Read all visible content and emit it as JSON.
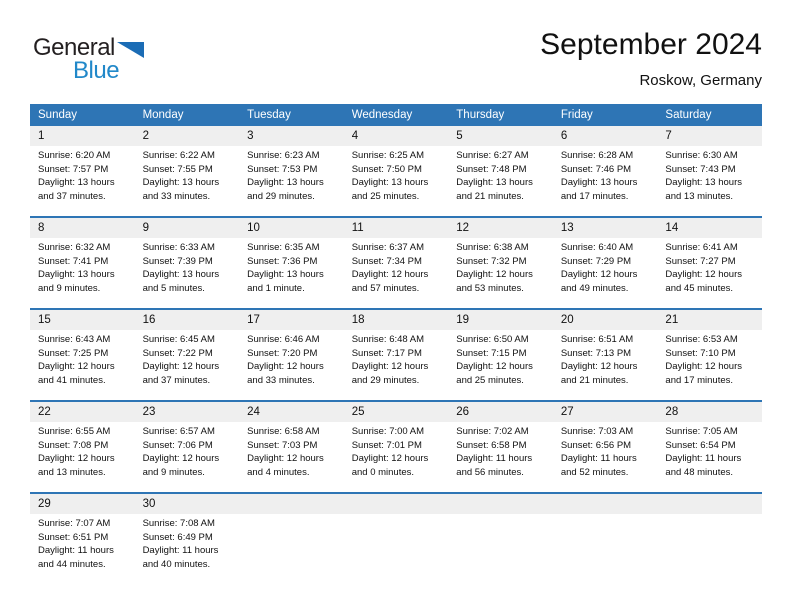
{
  "logo": {
    "general": "General",
    "blue": "Blue"
  },
  "header": {
    "title": "September 2024",
    "subtitle": "Roskow, Germany"
  },
  "colors": {
    "header_blue": "#2e75b5",
    "separator_blue": "#2e75b5",
    "number_band_gray": "#efefef",
    "logo_text_blue": "#2188c9",
    "logo_triangle_blue": "#1b6cb5"
  },
  "weekdays": [
    "Sunday",
    "Monday",
    "Tuesday",
    "Wednesday",
    "Thursday",
    "Friday",
    "Saturday"
  ],
  "weeks": [
    [
      {
        "day": "1",
        "sunrise": "Sunrise: 6:20 AM",
        "sunset": "Sunset: 7:57 PM",
        "daylight": "Daylight: 13 hours and 37 minutes."
      },
      {
        "day": "2",
        "sunrise": "Sunrise: 6:22 AM",
        "sunset": "Sunset: 7:55 PM",
        "daylight": "Daylight: 13 hours and 33 minutes."
      },
      {
        "day": "3",
        "sunrise": "Sunrise: 6:23 AM",
        "sunset": "Sunset: 7:53 PM",
        "daylight": "Daylight: 13 hours and 29 minutes."
      },
      {
        "day": "4",
        "sunrise": "Sunrise: 6:25 AM",
        "sunset": "Sunset: 7:50 PM",
        "daylight": "Daylight: 13 hours and 25 minutes."
      },
      {
        "day": "5",
        "sunrise": "Sunrise: 6:27 AM",
        "sunset": "Sunset: 7:48 PM",
        "daylight": "Daylight: 13 hours and 21 minutes."
      },
      {
        "day": "6",
        "sunrise": "Sunrise: 6:28 AM",
        "sunset": "Sunset: 7:46 PM",
        "daylight": "Daylight: 13 hours and 17 minutes."
      },
      {
        "day": "7",
        "sunrise": "Sunrise: 6:30 AM",
        "sunset": "Sunset: 7:43 PM",
        "daylight": "Daylight: 13 hours and 13 minutes."
      }
    ],
    [
      {
        "day": "8",
        "sunrise": "Sunrise: 6:32 AM",
        "sunset": "Sunset: 7:41 PM",
        "daylight": "Daylight: 13 hours and 9 minutes."
      },
      {
        "day": "9",
        "sunrise": "Sunrise: 6:33 AM",
        "sunset": "Sunset: 7:39 PM",
        "daylight": "Daylight: 13 hours and 5 minutes."
      },
      {
        "day": "10",
        "sunrise": "Sunrise: 6:35 AM",
        "sunset": "Sunset: 7:36 PM",
        "daylight": "Daylight: 13 hours and 1 minute."
      },
      {
        "day": "11",
        "sunrise": "Sunrise: 6:37 AM",
        "sunset": "Sunset: 7:34 PM",
        "daylight": "Daylight: 12 hours and 57 minutes."
      },
      {
        "day": "12",
        "sunrise": "Sunrise: 6:38 AM",
        "sunset": "Sunset: 7:32 PM",
        "daylight": "Daylight: 12 hours and 53 minutes."
      },
      {
        "day": "13",
        "sunrise": "Sunrise: 6:40 AM",
        "sunset": "Sunset: 7:29 PM",
        "daylight": "Daylight: 12 hours and 49 minutes."
      },
      {
        "day": "14",
        "sunrise": "Sunrise: 6:41 AM",
        "sunset": "Sunset: 7:27 PM",
        "daylight": "Daylight: 12 hours and 45 minutes."
      }
    ],
    [
      {
        "day": "15",
        "sunrise": "Sunrise: 6:43 AM",
        "sunset": "Sunset: 7:25 PM",
        "daylight": "Daylight: 12 hours and 41 minutes."
      },
      {
        "day": "16",
        "sunrise": "Sunrise: 6:45 AM",
        "sunset": "Sunset: 7:22 PM",
        "daylight": "Daylight: 12 hours and 37 minutes."
      },
      {
        "day": "17",
        "sunrise": "Sunrise: 6:46 AM",
        "sunset": "Sunset: 7:20 PM",
        "daylight": "Daylight: 12 hours and 33 minutes."
      },
      {
        "day": "18",
        "sunrise": "Sunrise: 6:48 AM",
        "sunset": "Sunset: 7:17 PM",
        "daylight": "Daylight: 12 hours and 29 minutes."
      },
      {
        "day": "19",
        "sunrise": "Sunrise: 6:50 AM",
        "sunset": "Sunset: 7:15 PM",
        "daylight": "Daylight: 12 hours and 25 minutes."
      },
      {
        "day": "20",
        "sunrise": "Sunrise: 6:51 AM",
        "sunset": "Sunset: 7:13 PM",
        "daylight": "Daylight: 12 hours and 21 minutes."
      },
      {
        "day": "21",
        "sunrise": "Sunrise: 6:53 AM",
        "sunset": "Sunset: 7:10 PM",
        "daylight": "Daylight: 12 hours and 17 minutes."
      }
    ],
    [
      {
        "day": "22",
        "sunrise": "Sunrise: 6:55 AM",
        "sunset": "Sunset: 7:08 PM",
        "daylight": "Daylight: 12 hours and 13 minutes."
      },
      {
        "day": "23",
        "sunrise": "Sunrise: 6:57 AM",
        "sunset": "Sunset: 7:06 PM",
        "daylight": "Daylight: 12 hours and 9 minutes."
      },
      {
        "day": "24",
        "sunrise": "Sunrise: 6:58 AM",
        "sunset": "Sunset: 7:03 PM",
        "daylight": "Daylight: 12 hours and 4 minutes."
      },
      {
        "day": "25",
        "sunrise": "Sunrise: 7:00 AM",
        "sunset": "Sunset: 7:01 PM",
        "daylight": "Daylight: 12 hours and 0 minutes."
      },
      {
        "day": "26",
        "sunrise": "Sunrise: 7:02 AM",
        "sunset": "Sunset: 6:58 PM",
        "daylight": "Daylight: 11 hours and 56 minutes."
      },
      {
        "day": "27",
        "sunrise": "Sunrise: 7:03 AM",
        "sunset": "Sunset: 6:56 PM",
        "daylight": "Daylight: 11 hours and 52 minutes."
      },
      {
        "day": "28",
        "sunrise": "Sunrise: 7:05 AM",
        "sunset": "Sunset: 6:54 PM",
        "daylight": "Daylight: 11 hours and 48 minutes."
      }
    ],
    [
      {
        "day": "29",
        "sunrise": "Sunrise: 7:07 AM",
        "sunset": "Sunset: 6:51 PM",
        "daylight": "Daylight: 11 hours and 44 minutes."
      },
      {
        "day": "30",
        "sunrise": "Sunrise: 7:08 AM",
        "sunset": "Sunset: 6:49 PM",
        "daylight": "Daylight: 11 hours and 40 minutes."
      },
      null,
      null,
      null,
      null,
      null
    ]
  ]
}
